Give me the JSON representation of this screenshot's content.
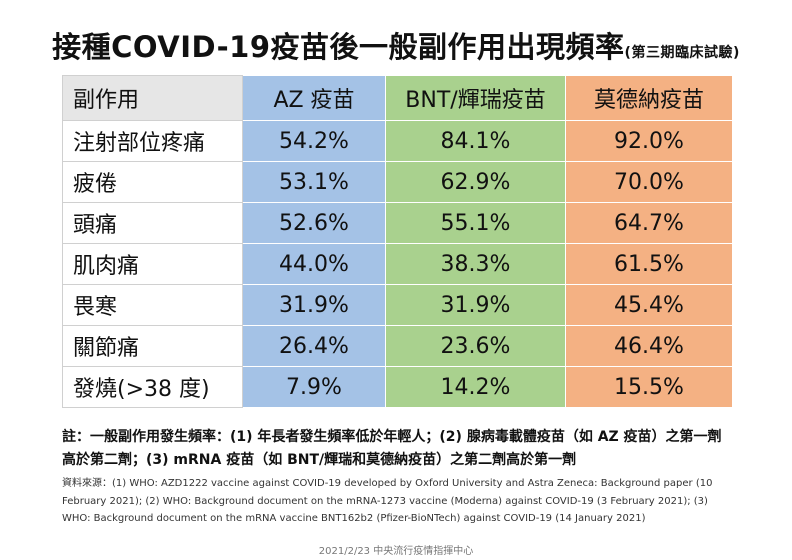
{
  "header": {
    "title": "接種COVID-19疫苗後一般副作用出現頻率",
    "subtitle": "(第三期臨床試驗)"
  },
  "table": {
    "header": [
      "副作用",
      "AZ 疫苗",
      "BNT/輝瑞疫苗",
      "莫德納疫苗"
    ],
    "rows": [
      [
        "注射部位疼痛",
        "54.2%",
        "84.1%",
        "92.0%"
      ],
      [
        "疲倦",
        "53.1%",
        "62.9%",
        "70.0%"
      ],
      [
        "頭痛",
        "52.6%",
        "55.1%",
        "64.7%"
      ],
      [
        "肌肉痛",
        "44.0%",
        "38.3%",
        "61.5%"
      ],
      [
        "畏寒",
        "31.9%",
        "31.9%",
        "45.4%"
      ],
      [
        "關節痛",
        "26.4%",
        "23.6%",
        "46.4%"
      ],
      [
        "發燒(>38 度)",
        "7.9%",
        "14.2%",
        "15.5%"
      ]
    ]
  },
  "note": "註：一般副作用發生頻率：(1) 年長者發生頻率低於年輕人；(2) 腺病毒載體疫苗（如 AZ 疫苗）之第一劑高於第二劑；(3) mRNA 疫苗（如 BNT/輝瑞和莫德納疫苗）之第二劑高於第一劑",
  "source": "資料來源：(1) WHO: AZD1222 vaccine against COVID-19 developed by Oxford University and Astra Zeneca: Background paper (10 February 2021); (2) WHO: Background document on the mRNA-1273 vaccine (Moderna) against COVID-19 (3 February 2021); (3) WHO: Background document on the mRNA vaccine BNT162b2 (Pfizer-BioNTech) against COVID-19 (14 January 2021)",
  "footer": "2021/2/23 中央流行疫情指揮中心"
}
